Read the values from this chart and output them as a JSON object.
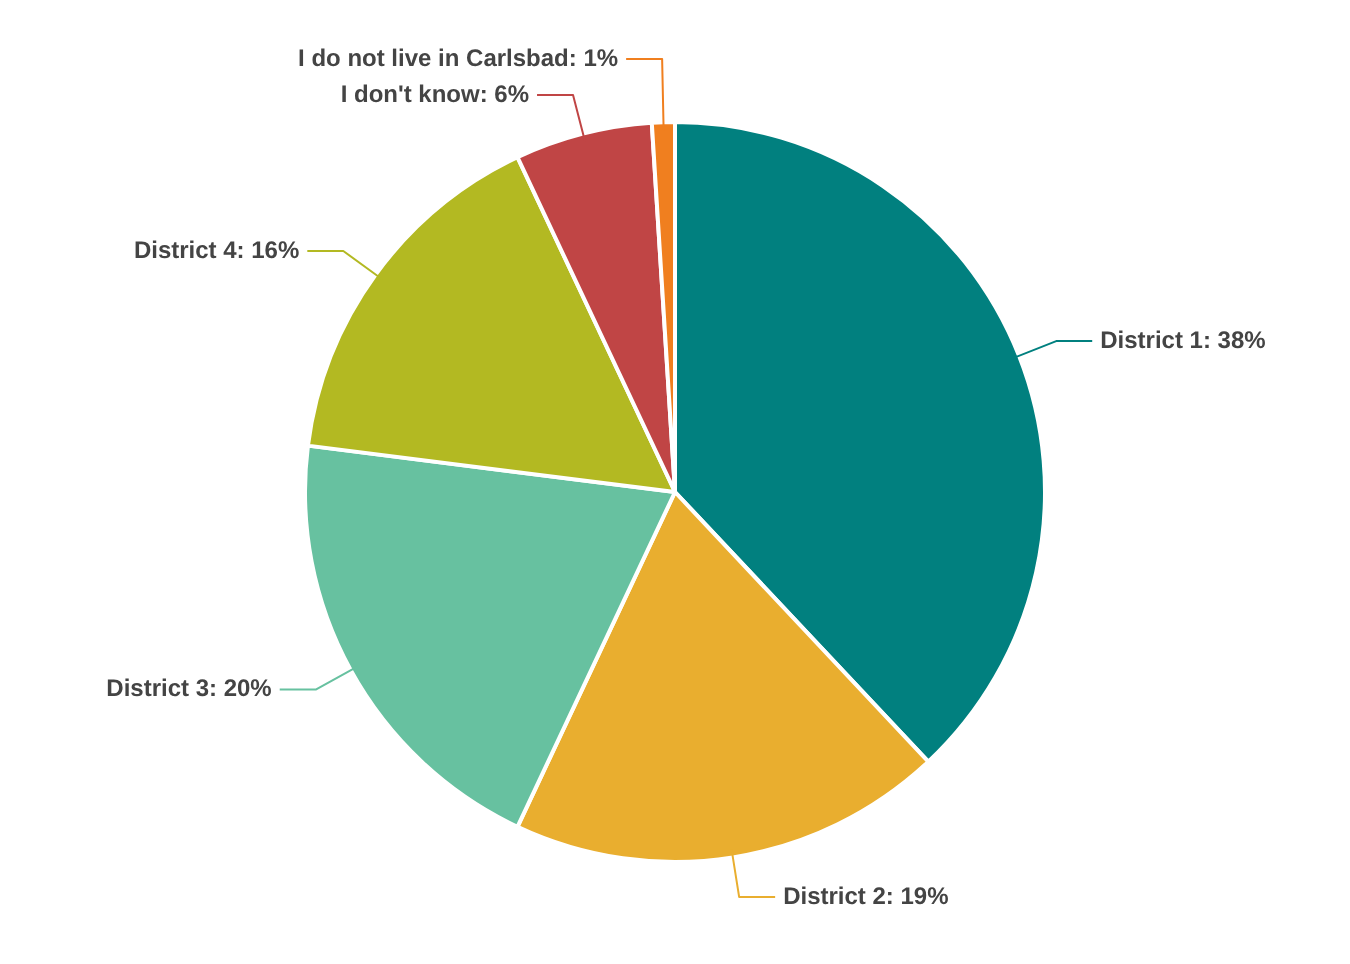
{
  "chart_data": {
    "type": "pie",
    "categories": [
      "District 1",
      "District 2",
      "District 3",
      "District 4",
      "I don't know",
      "I do not live in Carlsbad"
    ],
    "values": [
      38,
      19,
      20,
      16,
      6,
      1
    ],
    "value_labels": [
      "38%",
      "19%",
      "20%",
      "16%",
      "6%",
      "1%"
    ],
    "colors": [
      "#01807f",
      "#e9ae2f",
      "#67c1a0",
      "#b3b922",
      "#c04545",
      "#f07f1f"
    ],
    "legend": false
  }
}
